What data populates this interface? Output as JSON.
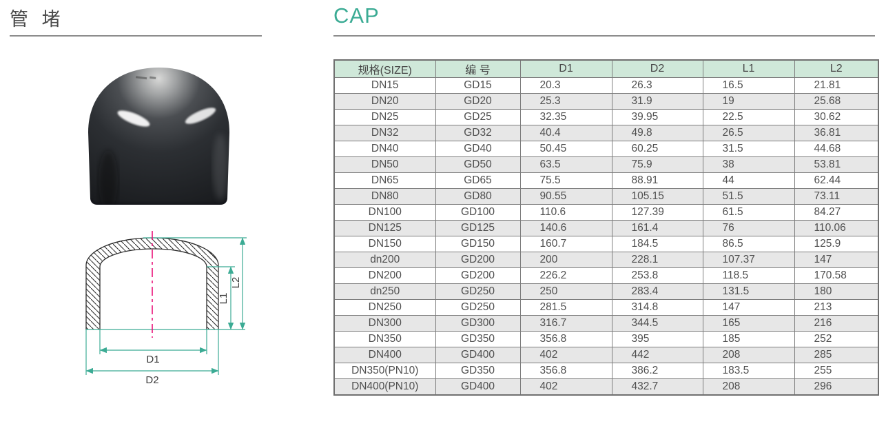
{
  "page": {
    "title_cn": "管 堵",
    "title_en": "CAP",
    "colors": {
      "accent": "#3BAB94",
      "table_header_bg": "#CFE8D9",
      "table_row_alt": "#E7E7E7",
      "drawing_centerline": "#EA1178"
    }
  },
  "table": {
    "headers": [
      "规格(SIZE)",
      "编 号",
      "D1",
      "D2",
      "L1",
      "L2"
    ],
    "rows": [
      [
        "DN15",
        "GD15",
        "20.3",
        "26.3",
        "16.5",
        "21.81"
      ],
      [
        "DN20",
        "GD20",
        "25.3",
        "31.9",
        "19",
        "25.68"
      ],
      [
        "DN25",
        "GD25",
        "32.35",
        "39.95",
        "22.5",
        "30.62"
      ],
      [
        "DN32",
        "GD32",
        "40.4",
        "49.8",
        "26.5",
        "36.81"
      ],
      [
        "DN40",
        "GD40",
        "50.45",
        "60.25",
        "31.5",
        "44.68"
      ],
      [
        "DN50",
        "GD50",
        "63.5",
        "75.9",
        "38",
        "53.81"
      ],
      [
        "DN65",
        "GD65",
        "75.5",
        "88.91",
        "44",
        "62.44"
      ],
      [
        "DN80",
        "GD80",
        "90.55",
        "105.15",
        "51.5",
        "73.11"
      ],
      [
        "DN100",
        "GD100",
        "110.6",
        "127.39",
        "61.5",
        "84.27"
      ],
      [
        "DN125",
        "GD125",
        "140.6",
        "161.4",
        "76",
        "110.06"
      ],
      [
        "DN150",
        "GD150",
        "160.7",
        "184.5",
        "86.5",
        "125.9"
      ],
      [
        "dn200",
        "GD200",
        "200",
        "228.1",
        "107.37",
        "147"
      ],
      [
        "DN200",
        "GD200",
        "226.2",
        "253.8",
        "118.5",
        "170.58"
      ],
      [
        "dn250",
        "GD250",
        "250",
        "283.4",
        "131.5",
        "180"
      ],
      [
        "DN250",
        "GD250",
        "281.5",
        "314.8",
        "147",
        "213"
      ],
      [
        "DN300",
        "GD300",
        "316.7",
        "344.5",
        "165",
        "216"
      ],
      [
        "DN350",
        "GD350",
        "356.8",
        "395",
        "185",
        "252"
      ],
      [
        "DN400",
        "GD400",
        "402",
        "442",
        "208",
        "285"
      ],
      [
        "DN350(PN10)",
        "GD350",
        "356.8",
        "386.2",
        "183.5",
        "255"
      ],
      [
        "DN400(PN10)",
        "GD400",
        "402",
        "432.7",
        "208",
        "296"
      ]
    ]
  },
  "drawing": {
    "dim_d1": "D1",
    "dim_d2": "D2",
    "dim_l1": "L1",
    "dim_l2": "L2"
  }
}
